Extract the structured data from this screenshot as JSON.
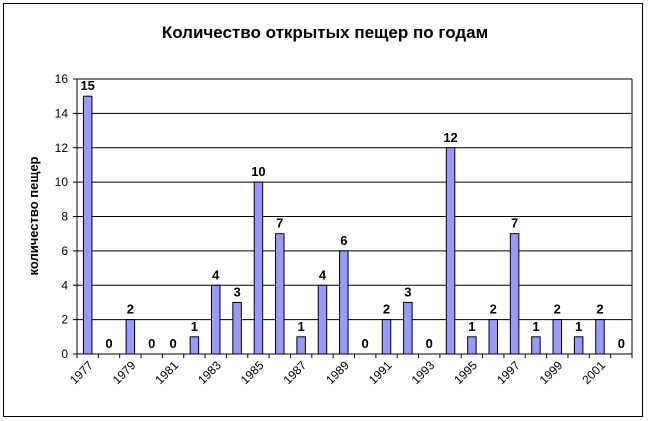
{
  "chart_data": {
    "type": "bar",
    "title": "Количество открытых пещер по годам",
    "ylabel": "количество пещер",
    "xlabel": "",
    "ylim": [
      0,
      16
    ],
    "yticks": [
      0,
      2,
      4,
      6,
      8,
      10,
      12,
      14,
      16
    ],
    "grid": true,
    "legend": "none",
    "colors": {
      "bar": "#9999ff",
      "bar_border": "#000000",
      "grid": "#000000"
    },
    "categories": [
      "1977",
      "1978",
      "1979",
      "1980",
      "1981",
      "1982",
      "1983",
      "1984",
      "1985",
      "1986",
      "1987",
      "1988",
      "1989",
      "1990",
      "1991",
      "1992",
      "1993",
      "1994",
      "1995",
      "1996",
      "1997",
      "1998",
      "1999",
      "2000",
      "2001",
      "2002"
    ],
    "x_tick_labels": [
      "1977",
      "1979",
      "1981",
      "1983",
      "1985",
      "1987",
      "1989",
      "1991",
      "1993",
      "1995",
      "1997",
      "1999",
      "2001"
    ],
    "values": [
      15,
      0,
      2,
      0,
      0,
      1,
      4,
      3,
      10,
      7,
      1,
      4,
      6,
      0,
      2,
      3,
      0,
      12,
      1,
      2,
      7,
      1,
      2,
      1,
      2,
      0
    ]
  }
}
